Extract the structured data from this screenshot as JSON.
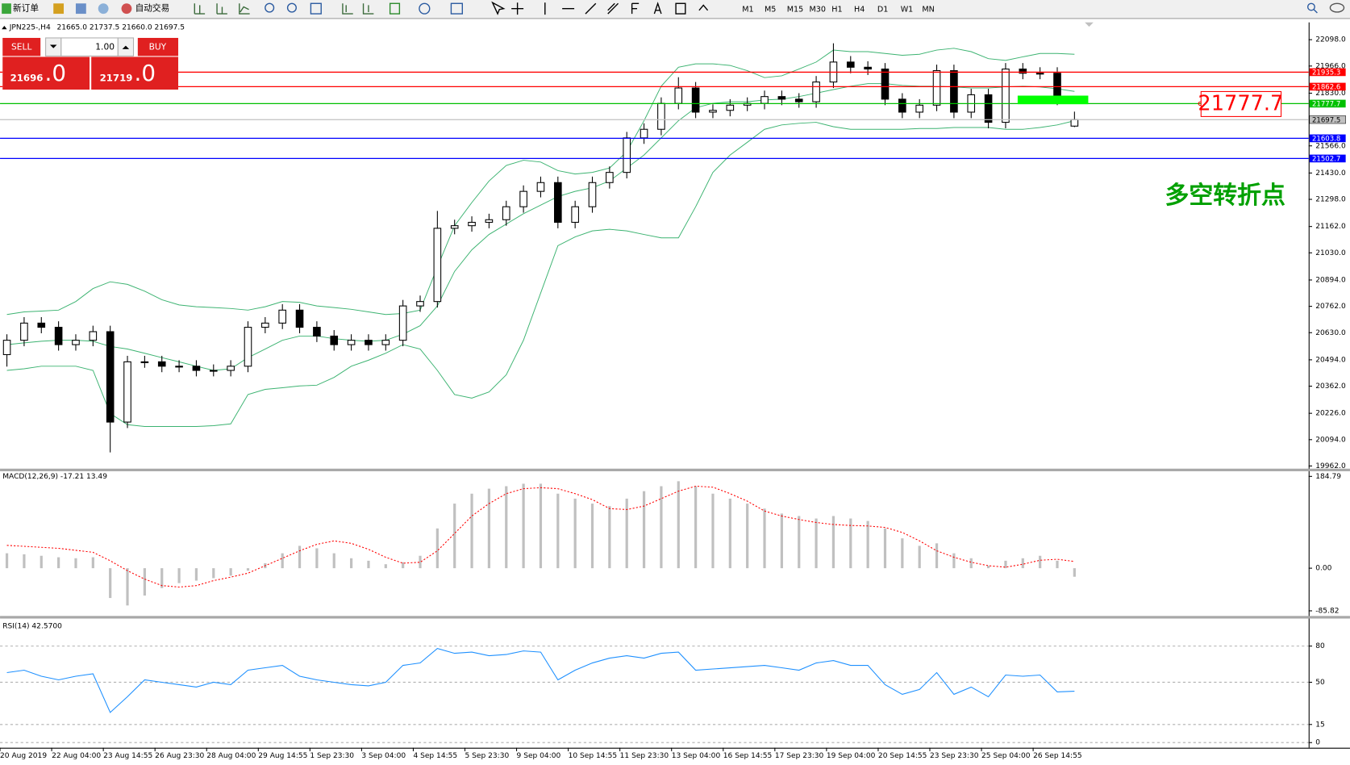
{
  "toolbar": {
    "new_order": "新订单",
    "auto_trade": "自动交易",
    "timeframes": [
      "M1",
      "M5",
      "M15",
      "M30",
      "H1",
      "H4",
      "D1",
      "W1",
      "MN"
    ]
  },
  "trade_panel": {
    "sell": "SELL",
    "buy": "BUY",
    "volume": "1.00",
    "sell_price": "21696",
    "sell_price_tail": ".0",
    "buy_price": "21719",
    "buy_price_tail": ".0"
  },
  "chart_data": [
    {
      "type": "candlestick",
      "title": "JPN225-,H4",
      "ohlc_text": "21665.0 21737.5 21660.0 21697.5",
      "annotation": "多空转折点",
      "categories": [
        "20 Aug 2019",
        null,
        null,
        "22 Aug 04:00",
        null,
        null,
        "23 Aug 14:55",
        null,
        null,
        "26 Aug 23:30",
        null,
        null,
        "28 Aug 04:00",
        null,
        null,
        "29 Aug 14:55",
        null,
        null,
        "1 Sep 23:30",
        null,
        null,
        "3 Sep 04:00",
        null,
        null,
        "4 Sep 14:55",
        null,
        null,
        "5 Sep 23:30",
        null,
        null,
        "9 Sep 04:00",
        null,
        null,
        "10 Sep 14:55",
        null,
        null,
        "11 Sep 23:30",
        null,
        null,
        "13 Sep 04:00",
        null,
        null,
        "16 Sep 14:55",
        null,
        null,
        "17 Sep 23:30",
        null,
        null,
        "19 Sep 04:00",
        null,
        null,
        "20 Sep 14:55",
        null,
        null,
        "23 Sep 23:30",
        null,
        null,
        "25 Sep 04:00",
        null,
        null,
        "26 Sep 14:55",
        null,
        null
      ],
      "open": [
        20520,
        20592,
        20678,
        20657,
        20570,
        20592,
        20635,
        20182,
        20484,
        20484,
        20462,
        20462,
        20441,
        20441,
        20462,
        20657,
        20678,
        20743,
        20657,
        20613,
        20570,
        20592,
        20570,
        20592,
        20764,
        20786,
        21153,
        21166,
        21183,
        21196,
        21261,
        21338,
        21382,
        21183,
        21261,
        21382,
        21433,
        21606,
        21649,
        21779,
        21856,
        21735,
        21744,
        21770,
        21779,
        21813,
        21800,
        21787,
        21886,
        21986,
        21960,
        21951,
        21800,
        21735,
        21770,
        21943,
        21735,
        21822,
        21684,
        21951,
        21930,
        21930,
        21665
      ],
      "high": [
        20622,
        20708,
        20708,
        20687,
        20622,
        20665,
        20665,
        20514,
        20514,
        20514,
        20492,
        20492,
        20471,
        20492,
        20687,
        20708,
        20773,
        20773,
        20687,
        20643,
        20622,
        20622,
        20622,
        20794,
        20816,
        21240,
        21196,
        21213,
        21226,
        21291,
        21368,
        21412,
        21412,
        21291,
        21412,
        21463,
        21636,
        21679,
        21809,
        21910,
        21886,
        21774,
        21800,
        21809,
        21843,
        21843,
        21830,
        21916,
        22080,
        22016,
        21990,
        21981,
        21830,
        21800,
        21973,
        21973,
        21852,
        21852,
        21981,
        21981,
        21960,
        21960,
        21737.5
      ],
      "low": [
        20460,
        20562,
        20627,
        20540,
        20540,
        20562,
        20030,
        20152,
        20454,
        20432,
        20432,
        20411,
        20411,
        20411,
        20432,
        20627,
        20648,
        20627,
        20583,
        20540,
        20540,
        20540,
        20540,
        20562,
        20734,
        20756,
        21123,
        21136,
        21153,
        21166,
        21231,
        21308,
        21153,
        21153,
        21231,
        21352,
        21403,
        21576,
        21619,
        21749,
        21705,
        21705,
        21714,
        21740,
        21749,
        21770,
        21757,
        21757,
        21856,
        21930,
        21921,
        21770,
        21705,
        21705,
        21740,
        21705,
        21705,
        21654,
        21654,
        21900,
        21900,
        21770,
        21660
      ],
      "close": [
        20592,
        20678,
        20657,
        20570,
        20592,
        20635,
        20182,
        20484,
        20484,
        20462,
        20462,
        20441,
        20441,
        20462,
        20657,
        20678,
        20743,
        20657,
        20613,
        20570,
        20592,
        20570,
        20592,
        20764,
        20786,
        21153,
        21166,
        21183,
        21196,
        21261,
        21338,
        21382,
        21183,
        21261,
        21382,
        21433,
        21606,
        21649,
        21779,
        21856,
        21735,
        21744,
        21770,
        21779,
        21813,
        21800,
        21787,
        21886,
        21986,
        21960,
        21951,
        21800,
        21735,
        21770,
        21943,
        21735,
        21822,
        21684,
        21951,
        21930,
        21930,
        21800,
        21697.5
      ],
      "bb_upper": [
        20721,
        20734,
        20738,
        20743,
        20786,
        20851,
        20885,
        20872,
        20838,
        20795,
        20769,
        20760,
        20756,
        20751,
        20743,
        20760,
        20786,
        20782,
        20764,
        20756,
        20747,
        20734,
        20721,
        20726,
        20743,
        20959,
        21166,
        21282,
        21390,
        21468,
        21494,
        21485,
        21442,
        21425,
        21433,
        21455,
        21537,
        21692,
        21865,
        21960,
        21977,
        21977,
        21969,
        21943,
        21908,
        21917,
        21951,
        21986,
        22046,
        22038,
        22038,
        22029,
        22020,
        22025,
        22046,
        22055,
        22038,
        22003,
        21994,
        22012,
        22029,
        22029,
        22025
      ],
      "bb_middle": [
        20570,
        20579,
        20587,
        20592,
        20592,
        20587,
        20561,
        20548,
        20527,
        20505,
        20484,
        20462,
        20441,
        20449,
        20505,
        20548,
        20592,
        20613,
        20613,
        20600,
        20592,
        20587,
        20592,
        20622,
        20665,
        20764,
        20937,
        21045,
        21122,
        21174,
        21226,
        21269,
        21312,
        21338,
        21356,
        21390,
        21455,
        21520,
        21606,
        21692,
        21757,
        21779,
        21787,
        21787,
        21796,
        21800,
        21813,
        21830,
        21848,
        21865,
        21878,
        21878,
        21869,
        21865,
        21865,
        21861,
        21856,
        21856,
        21861,
        21865,
        21861,
        21852,
        21839
      ],
      "bb_lower": [
        20441,
        20449,
        20462,
        20462,
        20462,
        20441,
        20225,
        20169,
        20160,
        20160,
        20160,
        20160,
        20164,
        20173,
        20320,
        20346,
        20354,
        20363,
        20367,
        20406,
        20462,
        20492,
        20527,
        20570,
        20548,
        20441,
        20320,
        20302,
        20333,
        20419,
        20592,
        20829,
        21066,
        21110,
        21140,
        21148,
        21140,
        21122,
        21105,
        21105,
        21261,
        21433,
        21520,
        21584,
        21649,
        21671,
        21679,
        21684,
        21662,
        21649,
        21649,
        21649,
        21649,
        21653,
        21653,
        21658,
        21658,
        21658,
        21649,
        21649,
        21658,
        21671,
        21692
      ],
      "bb_color": "#3cb371",
      "up_color": "#ffffff",
      "down_color": "#000000",
      "hlines": [
        {
          "value": 21935.3,
          "color": "#ff0000",
          "text_color": "#ffffff"
        },
        {
          "value": 21862.6,
          "color": "#ff0000",
          "text_color": "#ffffff"
        },
        {
          "value": 21777.7,
          "color": "#00c000",
          "text_color": "#ffffff"
        },
        {
          "value": 21697.5,
          "color": "#c0c0c0",
          "text_color": "#000000"
        },
        {
          "value": 21603.8,
          "color": "#0000ff",
          "text_color": "#ffffff"
        },
        {
          "value": 21502.7,
          "color": "#0000ff",
          "text_color": "#ffffff"
        }
      ],
      "ylim": [
        19953,
        22176
      ],
      "yticks": [
        {
          "value": 22098,
          "label": "22098.0"
        },
        {
          "value": 21966,
          "label": "21966.0"
        },
        {
          "value": 21830,
          "label": "21830.0"
        },
        {
          "value": 21566,
          "label": "21566.0"
        },
        {
          "value": 21430,
          "label": "21430.0"
        },
        {
          "value": 21298,
          "label": "21298.0"
        },
        {
          "value": 21162,
          "label": "21162.0"
        },
        {
          "value": 21030,
          "label": "21030.0"
        },
        {
          "value": 20894,
          "label": "20894.0"
        },
        {
          "value": 20762,
          "label": "20762.0"
        },
        {
          "value": 20630,
          "label": "20630.0"
        },
        {
          "value": 20494,
          "label": "20494.0"
        },
        {
          "value": 20362,
          "label": "20362.0"
        },
        {
          "value": 20226,
          "label": "20226.0"
        },
        {
          "value": 20094,
          "label": "20094.0"
        },
        {
          "value": 19962,
          "label": "19962.0"
        }
      ],
      "grid": false
    },
    {
      "type": "macd",
      "title": "MACD(12,26,9) -17.21 13.49",
      "histogram": [
        30,
        28,
        25,
        22,
        20,
        22,
        -60,
        -75,
        -55,
        -40,
        -30,
        -25,
        -20,
        -15,
        -5,
        10,
        30,
        45,
        40,
        30,
        20,
        15,
        8,
        12,
        25,
        80,
        130,
        150,
        160,
        165,
        170,
        170,
        150,
        140,
        130,
        125,
        140,
        155,
        165,
        175,
        165,
        150,
        140,
        130,
        120,
        110,
        105,
        100,
        105,
        100,
        95,
        80,
        60,
        45,
        50,
        30,
        20,
        5,
        15,
        20,
        25,
        15,
        -17.21
      ],
      "signal": [
        46,
        44,
        42,
        40,
        36,
        32,
        15,
        -5,
        -22,
        -35,
        -38,
        -35,
        -25,
        -18,
        -10,
        5,
        20,
        35,
        48,
        55,
        50,
        38,
        22,
        10,
        12,
        35,
        70,
        105,
        130,
        150,
        160,
        162,
        160,
        150,
        138,
        120,
        118,
        125,
        140,
        155,
        165,
        163,
        150,
        135,
        115,
        105,
        98,
        92,
        88,
        86,
        85,
        82,
        72,
        55,
        35,
        22,
        12,
        5,
        2,
        8,
        16,
        18,
        13.49
      ],
      "color": "#c0c0c0",
      "signal_color": "#ff0000",
      "ylim": [
        -94.4,
        193.4
      ],
      "yticks": [
        184.79,
        {
          "value": 0,
          "label": "0.00"
        },
        -85.82
      ],
      "grid": false
    },
    {
      "type": "line",
      "title": "RSI(14) 42.5700",
      "values": [
        58,
        60,
        55,
        52,
        55,
        57,
        25,
        38,
        52,
        50,
        48,
        46,
        50,
        48,
        60,
        62,
        64,
        55,
        52,
        50,
        48,
        47,
        50,
        64,
        66,
        78,
        74,
        75,
        72,
        73,
        76,
        75,
        52,
        60,
        66,
        70,
        72,
        70,
        74,
        75,
        60,
        61,
        62,
        63,
        64,
        62,
        60,
        66,
        68,
        64,
        64,
        48,
        40,
        44,
        58,
        40,
        46,
        38,
        56,
        55,
        56,
        42,
        42.57
      ],
      "color": "#1e90ff",
      "ylim": [
        -4.3,
        102.1
      ],
      "yticks": [
        0,
        15,
        50,
        80
      ],
      "grid": true
    }
  ]
}
